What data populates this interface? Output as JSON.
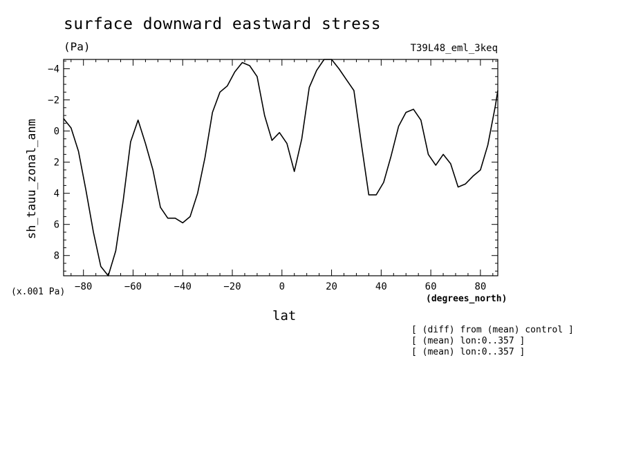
{
  "chart_data": {
    "type": "line",
    "title": "surface downward eastward stress",
    "units": "(Pa)",
    "run_label": "T39L48_eml_3keq",
    "ylabel": "sh_tauu_zonal_anm",
    "y_scale_note": "(x.001 Pa)",
    "xlabel": "lat",
    "x_units": "(degrees_north)",
    "xlim": [
      -88,
      87
    ],
    "ylim": [
      9.3,
      -4.6
    ],
    "y_inverted": true,
    "grid": false,
    "x_ticks": [
      -80,
      -60,
      -40,
      -20,
      0,
      20,
      40,
      60,
      80
    ],
    "x_tick_labels": [
      "−80",
      "−60",
      "−40",
      "−20",
      "0",
      "20",
      "40",
      "60",
      "80"
    ],
    "y_ticks": [
      -4,
      -2,
      0,
      2,
      4,
      6,
      8
    ],
    "y_tick_labels": [
      "−4",
      "−2",
      "0",
      "2",
      "4",
      "6",
      "8"
    ],
    "series": [
      {
        "x": [
          -88,
          -85,
          -82,
          -79,
          -76,
          -73,
          -70,
          -67,
          -64,
          -61,
          -58,
          -55,
          -52,
          -49,
          -46,
          -43,
          -40,
          -37,
          -34,
          -31,
          -28,
          -25,
          -22,
          -19,
          -16,
          -13,
          -10,
          -7,
          -4,
          -1,
          2,
          5,
          8,
          11,
          14,
          17,
          20,
          23,
          26,
          29,
          32,
          35,
          38,
          41,
          44,
          47,
          50,
          53,
          56,
          59,
          62,
          65,
          68,
          71,
          74,
          77,
          80,
          83,
          86,
          87
        ],
        "y": [
          -0.8,
          -0.2,
          1.3,
          3.8,
          6.5,
          8.7,
          9.3,
          7.7,
          4.5,
          0.7,
          -0.7,
          0.8,
          2.5,
          4.9,
          5.6,
          5.6,
          5.9,
          5.5,
          4.0,
          1.7,
          -1.2,
          -2.5,
          -2.9,
          -3.8,
          -4.4,
          -4.2,
          -3.5,
          -1.0,
          0.6,
          0.1,
          0.8,
          2.6,
          0.5,
          -2.8,
          -3.9,
          -4.6,
          -4.6,
          -4.0,
          -3.3,
          -2.6,
          0.8,
          4.1,
          4.1,
          3.3,
          1.6,
          -0.3,
          -1.2,
          -1.4,
          -0.7,
          1.5,
          2.2,
          1.5,
          2.1,
          3.6,
          3.4,
          2.9,
          2.5,
          0.9,
          -1.6,
          -2.6
        ]
      }
    ]
  },
  "notes": [
    "[ (diff) from (mean) control ]",
    "[ (mean) lon:0..357 ]",
    "[ (mean) lon:0..357 ]"
  ]
}
